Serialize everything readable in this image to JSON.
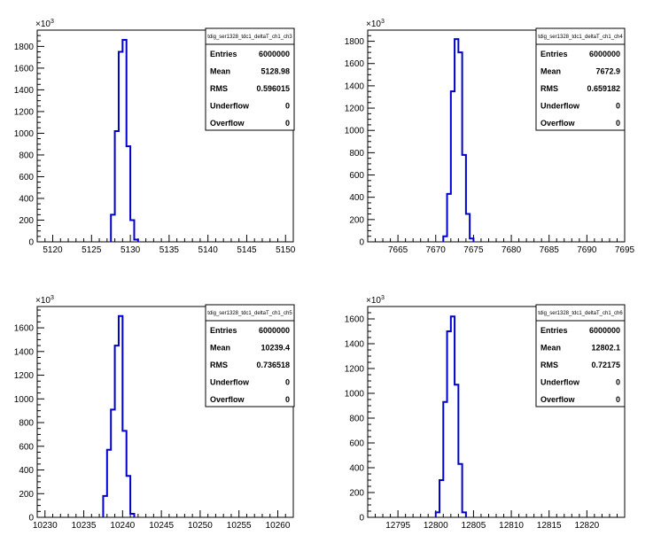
{
  "chart_data": [
    {
      "type": "bar",
      "histogram_name": "tdig_ser1328_tdc1_deltaT_ch1_ch3",
      "y_multiplier_label": "×10³",
      "bins": [
        5127.5,
        5128,
        5128.5,
        5129,
        5129.5,
        5130,
        5130.5
      ],
      "values": [
        250,
        1020,
        1750,
        1860,
        880,
        200,
        20
      ],
      "bin_width": 0.5,
      "xlim": [
        5118,
        5151
      ],
      "ylim": [
        0,
        1950
      ],
      "x_ticks": [
        5120,
        5125,
        5130,
        5135,
        5140,
        5145,
        5150
      ],
      "y_ticks": [
        0,
        200,
        400,
        600,
        800,
        1000,
        1200,
        1400,
        1600,
        1800
      ],
      "stats": {
        "Entries": "6000000",
        "Mean": "5128.98",
        "RMS": "0.596015",
        "Underflow": "0",
        "Overflow": "0"
      }
    },
    {
      "type": "bar",
      "histogram_name": "tdig_ser1328_tdc1_deltaT_ch1_ch4",
      "y_multiplier_label": "×10³",
      "bins": [
        7671,
        7671.5,
        7672,
        7672.5,
        7673,
        7673.5,
        7674,
        7674.5
      ],
      "values": [
        50,
        430,
        1350,
        1820,
        1700,
        780,
        250,
        30
      ],
      "bin_width": 0.5,
      "xlim": [
        7661,
        7695
      ],
      "ylim": [
        0,
        1900
      ],
      "x_ticks": [
        7665,
        7670,
        7675,
        7680,
        7685,
        7690,
        7695
      ],
      "y_ticks": [
        0,
        200,
        400,
        600,
        800,
        1000,
        1200,
        1400,
        1600,
        1800
      ],
      "stats": {
        "Entries": "6000000",
        "Mean": "7672.9",
        "RMS": "0.659182",
        "Underflow": "0",
        "Overflow": "0"
      }
    },
    {
      "type": "bar",
      "histogram_name": "tdig_ser1328_tdc1_deltaT_ch1_ch5",
      "y_multiplier_label": "×10³",
      "bins": [
        10237.5,
        10238,
        10238.5,
        10239,
        10239.5,
        10240,
        10240.5,
        10241
      ],
      "values": [
        180,
        570,
        910,
        1450,
        1700,
        730,
        350,
        30
      ],
      "bin_width": 0.5,
      "xlim": [
        10229,
        10262
      ],
      "ylim": [
        0,
        1780
      ],
      "x_ticks": [
        10230,
        10235,
        10240,
        10245,
        10250,
        10255,
        10260
      ],
      "y_ticks": [
        0,
        200,
        400,
        600,
        800,
        1000,
        1200,
        1400,
        1600
      ],
      "stats": {
        "Entries": "6000000",
        "Mean": "10239.4",
        "RMS": "0.736518",
        "Underflow": "0",
        "Overflow": "0"
      }
    },
    {
      "type": "bar",
      "histogram_name": "tdig_ser1328_tdc1_deltaT_ch1_ch6",
      "y_multiplier_label": "×10³",
      "bins": [
        12800,
        12800.5,
        12801,
        12801.5,
        12802,
        12802.5,
        12803,
        12803.5
      ],
      "values": [
        40,
        300,
        930,
        1500,
        1620,
        1070,
        430,
        40
      ],
      "bin_width": 0.5,
      "xlim": [
        12791,
        12825
      ],
      "ylim": [
        0,
        1700
      ],
      "x_ticks": [
        12795,
        12800,
        12805,
        12810,
        12815,
        12820
      ],
      "y_ticks": [
        0,
        200,
        400,
        600,
        800,
        1000,
        1200,
        1400,
        1600
      ],
      "stats": {
        "Entries": "6000000",
        "Mean": "12802.1",
        "RMS": "0.72175",
        "Underflow": "0",
        "Overflow": "0"
      }
    }
  ],
  "colors": {
    "histogram_line": "#0000cc",
    "axis": "#000000",
    "background": "#ffffff"
  }
}
